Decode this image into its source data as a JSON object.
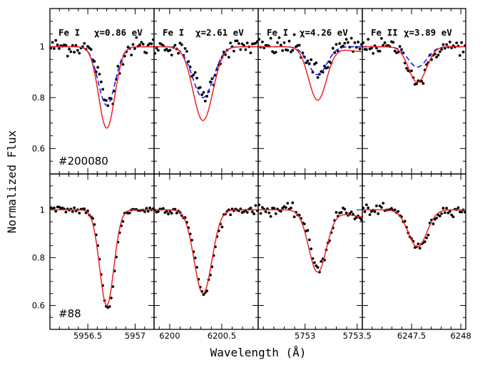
{
  "chart_data": {
    "type": "line",
    "ylabel": "Normalized Flux",
    "xlabel": "Wavelength (Å)",
    "ylim": [
      0.5,
      1.15
    ],
    "yticks": [
      "0.6",
      "0.8",
      "1"
    ],
    "colors": {
      "observed": "#000000",
      "model_red": "#ee2222",
      "model_blue": "#1a1aee"
    },
    "rows": [
      "#200080",
      "#88"
    ],
    "columns": [
      {
        "title_elem": "Fe I",
        "title_chi": "χ=0.86 eV",
        "xlim": [
          5956.1,
          5957.2
        ],
        "xticks": [
          "5956.5",
          "5957"
        ],
        "xtick_vals": [
          5956.5,
          5957.0
        ]
      },
      {
        "title_elem": "Fe I",
        "title_chi": "χ=2.61 eV",
        "xlim": [
          6199.85,
          6200.85
        ],
        "xticks": [
          "6200",
          "6200.5"
        ],
        "xtick_vals": [
          6200.0,
          6200.5
        ]
      },
      {
        "title_elem": "Fe I",
        "title_chi": "χ=4.26 eV",
        "xlim": [
          5752.55,
          5753.55
        ],
        "xticks": [
          "5753",
          "5753.5"
        ],
        "xtick_vals": [
          5753.0,
          5753.5
        ]
      },
      {
        "title_elem": "Fe II",
        "title_chi": "χ=3.89 eV",
        "xlim": [
          6247.0,
          6248.05
        ],
        "xticks": [
          "6247.5",
          "6248"
        ],
        "xtick_vals": [
          6247.5,
          6248.0
        ]
      }
    ],
    "panels": [
      {
        "row": 0,
        "col": 0,
        "center": 5956.7,
        "sigma": 0.085,
        "obs_depth": 0.22,
        "red_depth": 0.32,
        "blue_depth": 0.23,
        "noise": 0.018
      },
      {
        "row": 0,
        "col": 1,
        "center": 6200.32,
        "sigma": 0.095,
        "obs_depth": 0.19,
        "red_depth": 0.29,
        "blue_depth": 0.2,
        "noise": 0.016
      },
      {
        "row": 0,
        "col": 2,
        "center": 5753.12,
        "sigma": 0.085,
        "obs_depth": 0.11,
        "red_depth": 0.21,
        "blue_depth": 0.11,
        "noise": 0.02
      },
      {
        "row": 0,
        "col": 3,
        "center": 6247.56,
        "sigma": 0.09,
        "obs_depth": 0.14,
        "red_depth": 0.14,
        "blue_depth": 0.08,
        "noise": 0.015
      },
      {
        "row": 1,
        "col": 0,
        "center": 5956.7,
        "sigma": 0.075,
        "obs_depth": 0.41,
        "red_depth": 0.4,
        "noise": 0.008
      },
      {
        "row": 1,
        "col": 1,
        "center": 6200.32,
        "sigma": 0.085,
        "obs_depth": 0.35,
        "red_depth": 0.35,
        "noise": 0.008
      },
      {
        "row": 1,
        "col": 2,
        "center": 5753.12,
        "sigma": 0.085,
        "obs_depth": 0.24,
        "red_depth": 0.26,
        "noise": 0.012
      },
      {
        "row": 1,
        "col": 3,
        "center": 6247.56,
        "sigma": 0.095,
        "obs_depth": 0.16,
        "red_depth": 0.155,
        "noise": 0.01
      }
    ]
  }
}
